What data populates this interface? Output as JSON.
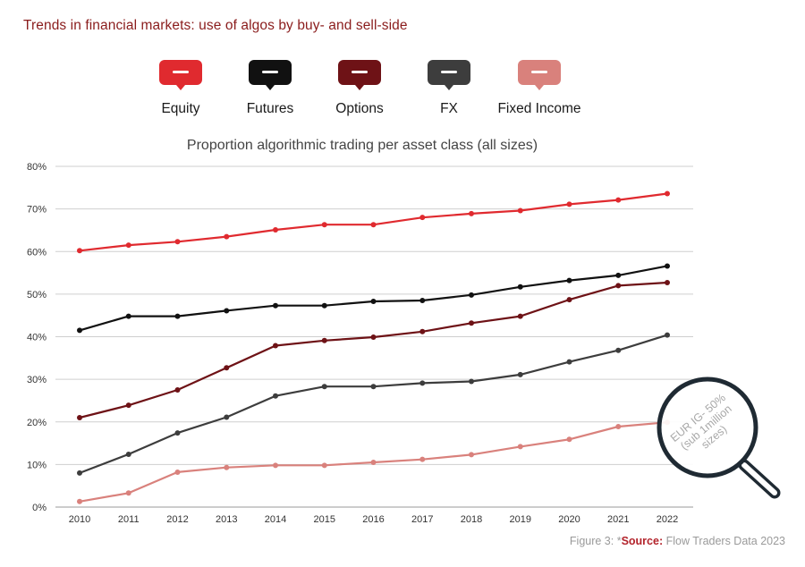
{
  "header": {
    "title": "Trends in financial markets: use of algos by buy- and sell-side"
  },
  "legend": [
    {
      "label": "Equity",
      "color": "#e02a2f",
      "icon": "speech-bubble-icon"
    },
    {
      "label": "Futures",
      "color": "#111111",
      "icon": "speech-bubble-icon"
    },
    {
      "label": "Options",
      "color": "#6e1216",
      "icon": "speech-bubble-icon"
    },
    {
      "label": "FX",
      "color": "#3d3d3d",
      "icon": "speech-bubble-icon"
    },
    {
      "label": "Fixed Income",
      "color": "#d9817c",
      "icon": "speech-bubble-icon"
    }
  ],
  "chart_data": {
    "type": "line",
    "title": "Proportion algorithmic trading per asset class (all sizes)",
    "xlabel": "",
    "ylabel": "",
    "x": [
      "2010",
      "2011",
      "2012",
      "2013",
      "2014",
      "2015",
      "2016",
      "2017",
      "2018",
      "2019",
      "2020",
      "2021",
      "2022"
    ],
    "yticks": [
      "0%",
      "10%",
      "20%",
      "30%",
      "40%",
      "50%",
      "60%",
      "70%",
      "80%"
    ],
    "ylim": [
      0,
      80
    ],
    "grid": true,
    "legend_position": "top",
    "series": [
      {
        "name": "Equity",
        "color": "#e02a2f",
        "values": [
          60.2,
          61.5,
          62.3,
          63.5,
          65.1,
          66.3,
          66.3,
          68.0,
          68.9,
          69.6,
          71.1,
          72.1,
          73.6
        ]
      },
      {
        "name": "Futures",
        "color": "#111111",
        "values": [
          41.5,
          44.8,
          44.8,
          46.1,
          47.3,
          47.3,
          48.3,
          48.5,
          49.8,
          51.7,
          53.2,
          54.4,
          56.6
        ]
      },
      {
        "name": "Options",
        "color": "#6e1216",
        "values": [
          21.0,
          23.9,
          27.5,
          32.7,
          37.9,
          39.1,
          39.9,
          41.2,
          43.2,
          44.8,
          48.7,
          52.0,
          52.7
        ]
      },
      {
        "name": "FX",
        "color": "#3d3d3d",
        "values": [
          8.0,
          12.4,
          17.4,
          21.1,
          26.1,
          28.3,
          28.3,
          29.1,
          29.5,
          31.1,
          34.1,
          36.8,
          40.4
        ]
      },
      {
        "name": "Fixed Income",
        "color": "#d9817c",
        "values": [
          1.3,
          3.3,
          8.2,
          9.3,
          9.8,
          9.8,
          10.5,
          11.2,
          12.3,
          14.2,
          15.9,
          18.9,
          19.9
        ]
      }
    ],
    "annotation": {
      "lines": [
        "EUR IG- 50%",
        "(sub 1million",
        "sizes)"
      ],
      "icon": "magnifying-glass-icon"
    }
  },
  "footer": {
    "figure": "Figure 3: *",
    "source_label": "Source:",
    "source_text": " Flow Traders Data 2023"
  }
}
